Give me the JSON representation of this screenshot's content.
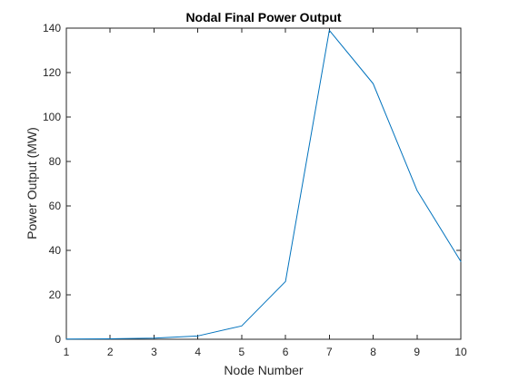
{
  "chart_data": {
    "type": "line",
    "title": "Nodal Final Power Output",
    "xlabel": "Node Number",
    "ylabel": "Power Output (MW)",
    "xlim": [
      1,
      10
    ],
    "ylim": [
      0,
      140
    ],
    "xticks": [
      1,
      2,
      3,
      4,
      5,
      6,
      7,
      8,
      9,
      10
    ],
    "yticks": [
      0,
      20,
      40,
      60,
      80,
      100,
      120,
      140
    ],
    "grid": false,
    "box": true,
    "series": [
      {
        "name": "Power Output",
        "color": "#0072BD",
        "x": [
          1,
          2,
          3,
          4,
          5,
          6,
          7,
          8,
          9,
          10
        ],
        "values": [
          0.1,
          0.2,
          0.5,
          1.5,
          6,
          26,
          139,
          115,
          67,
          35
        ]
      }
    ]
  }
}
